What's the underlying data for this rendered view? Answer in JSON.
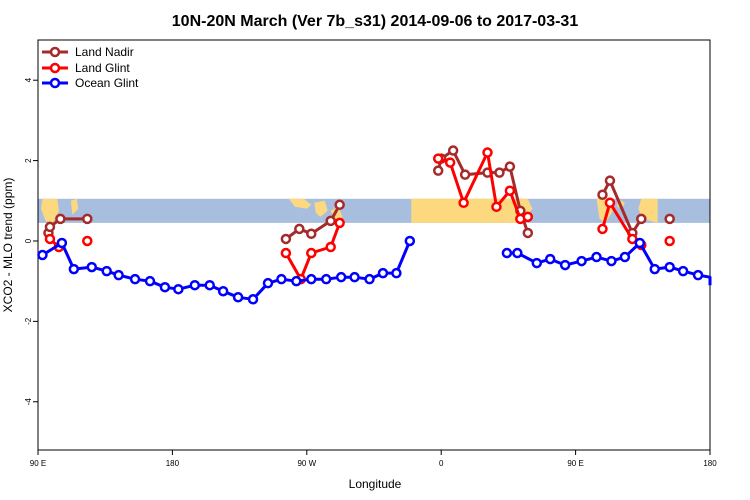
{
  "chart_data": {
    "type": "line",
    "title": "10N-20N March (Ver 7b_s31)   2014-09-06 to 2017-03-31",
    "xlabel": "Longitude",
    "ylabel": "XCO2 - MLO trend (ppm)",
    "x_ticks": [
      {
        "value": 90,
        "label": "90 E"
      },
      {
        "value": 180,
        "label": "180"
      },
      {
        "value": 270,
        "label": "90 W"
      },
      {
        "value": 360,
        "label": "0"
      },
      {
        "value": 450,
        "label": "90 E"
      },
      {
        "value": 540,
        "label": "180"
      }
    ],
    "xlim": [
      90,
      540
    ],
    "y_ticks": [
      -4,
      -2,
      0,
      2,
      4
    ],
    "ylim": [
      -5.2,
      5
    ],
    "legend_position": "top-left",
    "grid": false,
    "map_band": {
      "y_range": [
        0.45,
        1.05
      ],
      "ocean_color": "#a8bedf",
      "land_color": "#fcd97e"
    },
    "series": [
      {
        "name": "Land Nadir",
        "color": "#a52a2a",
        "points": [
          [
            97,
            0.2
          ],
          [
            98,
            0.35
          ],
          [
            105,
            0.55
          ],
          [
            123,
            0.55
          ],
          [
            256,
            0.05
          ],
          [
            265,
            0.3
          ],
          [
            273,
            0.18
          ],
          [
            286,
            0.5
          ],
          [
            292,
            0.9
          ],
          [
            358,
            1.75
          ],
          [
            360,
            2.05
          ],
          [
            368,
            2.25
          ],
          [
            376,
            1.65
          ],
          [
            391,
            1.7
          ],
          [
            399,
            1.7
          ],
          [
            406,
            1.85
          ],
          [
            413,
            0.75
          ],
          [
            418,
            0.2
          ],
          [
            468,
            1.15
          ],
          [
            473,
            1.5
          ],
          [
            488,
            0.2
          ],
          [
            494,
            0.55
          ],
          [
            513,
            0.55
          ]
        ]
      },
      {
        "name": "Land Glint",
        "color": "#ff0000",
        "points": [
          [
            98,
            0.05
          ],
          [
            104,
            -0.15
          ],
          [
            123,
            0.0
          ],
          [
            256,
            -0.3
          ],
          [
            266,
            -0.95
          ],
          [
            273,
            -0.3
          ],
          [
            286,
            -0.15
          ],
          [
            292,
            0.45
          ],
          [
            358,
            2.05
          ],
          [
            366,
            1.95
          ],
          [
            375,
            0.95
          ],
          [
            391,
            2.2
          ],
          [
            397,
            0.85
          ],
          [
            406,
            1.25
          ],
          [
            413,
            0.55
          ],
          [
            418,
            0.6
          ],
          [
            468,
            0.3
          ],
          [
            473,
            0.95
          ],
          [
            488,
            0.05
          ],
          [
            494,
            -0.1
          ],
          [
            513,
            0.0
          ]
        ]
      },
      {
        "name": "Ocean Glint",
        "color": "#0000ff",
        "points": [
          [
            93,
            -0.35
          ],
          [
            106,
            -0.05
          ],
          [
            114,
            -0.7
          ],
          [
            126,
            -0.65
          ],
          [
            136,
            -0.75
          ],
          [
            144,
            -0.85
          ],
          [
            155,
            -0.95
          ],
          [
            165,
            -1.0
          ],
          [
            175,
            -1.15
          ],
          [
            184,
            -1.2
          ],
          [
            195,
            -1.1
          ],
          [
            205,
            -1.1
          ],
          [
            214,
            -1.25
          ],
          [
            224,
            -1.4
          ],
          [
            234,
            -1.45
          ],
          [
            244,
            -1.05
          ],
          [
            253,
            -0.95
          ],
          [
            263,
            -1.0
          ],
          [
            273,
            -0.95
          ],
          [
            283,
            -0.95
          ],
          [
            293,
            -0.9
          ],
          [
            302,
            -0.9
          ],
          [
            312,
            -0.95
          ],
          [
            321,
            -0.8
          ],
          [
            330,
            -0.8
          ],
          [
            339,
            0.0
          ],
          [
            404,
            -0.3
          ],
          [
            411,
            -0.3
          ],
          [
            424,
            -0.55
          ],
          [
            433,
            -0.45
          ],
          [
            443,
            -0.6
          ],
          [
            454,
            -0.5
          ],
          [
            464,
            -0.4
          ],
          [
            474,
            -0.5
          ],
          [
            483,
            -0.4
          ],
          [
            493,
            -0.05
          ],
          [
            503,
            -0.7
          ],
          [
            513,
            -0.65
          ],
          [
            522,
            -0.75
          ],
          [
            532,
            -0.85
          ],
          [
            542,
            -0.9
          ],
          [
            551,
            -0.95
          ],
          [
            561,
            -1.1
          ]
        ]
      }
    ]
  }
}
